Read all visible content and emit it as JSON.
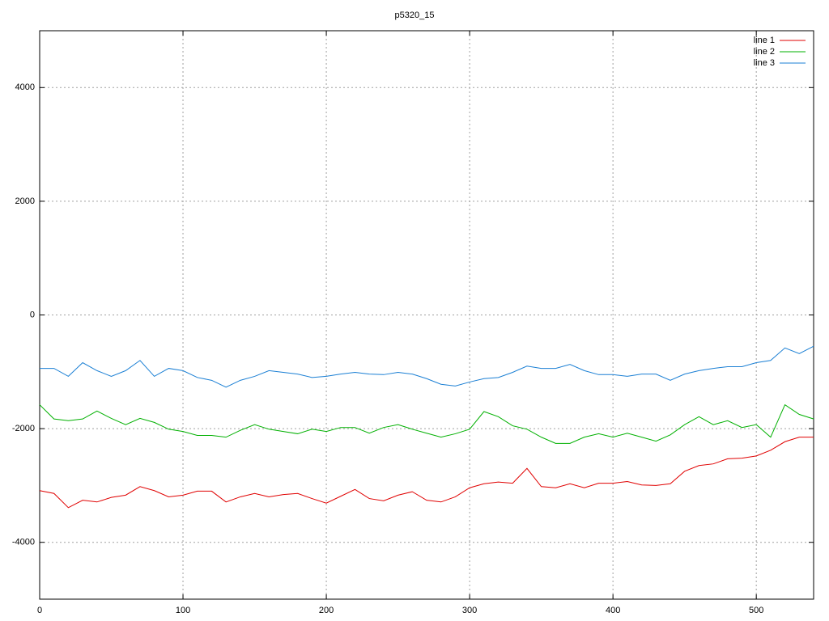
{
  "chart_data": {
    "type": "line",
    "title": "p5320_15",
    "x": [
      0,
      10,
      20,
      30,
      40,
      50,
      60,
      70,
      80,
      90,
      100,
      110,
      120,
      130,
      140,
      150,
      160,
      170,
      180,
      190,
      200,
      210,
      220,
      230,
      240,
      250,
      260,
      270,
      280,
      290,
      300,
      310,
      320,
      330,
      340,
      350,
      360,
      370,
      380,
      390,
      400,
      410,
      420,
      430,
      440,
      450,
      460,
      470,
      480,
      490,
      500,
      510,
      520,
      530,
      540
    ],
    "series": [
      {
        "name": "line 1",
        "color": "#e00000",
        "values": [
          -3090,
          -3140,
          -3390,
          -3260,
          -3290,
          -3210,
          -3170,
          -3020,
          -3090,
          -3200,
          -3170,
          -3100,
          -3100,
          -3290,
          -3200,
          -3140,
          -3200,
          -3160,
          -3140,
          -3230,
          -3310,
          -3190,
          -3070,
          -3230,
          -3270,
          -3170,
          -3110,
          -3260,
          -3290,
          -3200,
          -3040,
          -2970,
          -2940,
          -2960,
          -2700,
          -3020,
          -3040,
          -2970,
          -3040,
          -2960,
          -2960,
          -2930,
          -2990,
          -3000,
          -2970,
          -2750,
          -2650,
          -2620,
          -2530,
          -2520,
          -2480,
          -2380,
          -2230,
          -2150,
          -2150
        ]
      },
      {
        "name": "line 2",
        "color": "#00b000",
        "values": [
          -1580,
          -1830,
          -1860,
          -1830,
          -1690,
          -1820,
          -1930,
          -1820,
          -1890,
          -2010,
          -2050,
          -2120,
          -2120,
          -2150,
          -2030,
          -1930,
          -2010,
          -2050,
          -2090,
          -2010,
          -2050,
          -1980,
          -1980,
          -2080,
          -1980,
          -1930,
          -2010,
          -2080,
          -2150,
          -2090,
          -2010,
          -1700,
          -1790,
          -1950,
          -2010,
          -2150,
          -2260,
          -2260,
          -2150,
          -2090,
          -2150,
          -2080,
          -2150,
          -2220,
          -2110,
          -1930,
          -1790,
          -1930,
          -1860,
          -1980,
          -1930,
          -2150,
          -1580,
          -1750,
          -1830
        ]
      },
      {
        "name": "line 3",
        "color": "#1a7fd4",
        "values": [
          -940,
          -940,
          -1080,
          -840,
          -980,
          -1080,
          -980,
          -800,
          -1080,
          -940,
          -980,
          -1100,
          -1150,
          -1270,
          -1150,
          -1080,
          -980,
          -1010,
          -1040,
          -1100,
          -1080,
          -1040,
          -1010,
          -1040,
          -1050,
          -1010,
          -1040,
          -1120,
          -1220,
          -1250,
          -1180,
          -1120,
          -1100,
          -1010,
          -900,
          -940,
          -940,
          -870,
          -980,
          -1050,
          -1050,
          -1080,
          -1040,
          -1040,
          -1150,
          -1040,
          -980,
          -940,
          -910,
          -910,
          -840,
          -800,
          -580,
          -680,
          -550
        ]
      }
    ],
    "xlim": [
      0,
      540
    ],
    "ylim": [
      -5000,
      5000
    ],
    "xticks": [
      0,
      100,
      200,
      300,
      400,
      500
    ],
    "yticks": [
      -4000,
      -2000,
      0,
      2000,
      4000
    ],
    "grid": true,
    "legend": "top-right"
  }
}
